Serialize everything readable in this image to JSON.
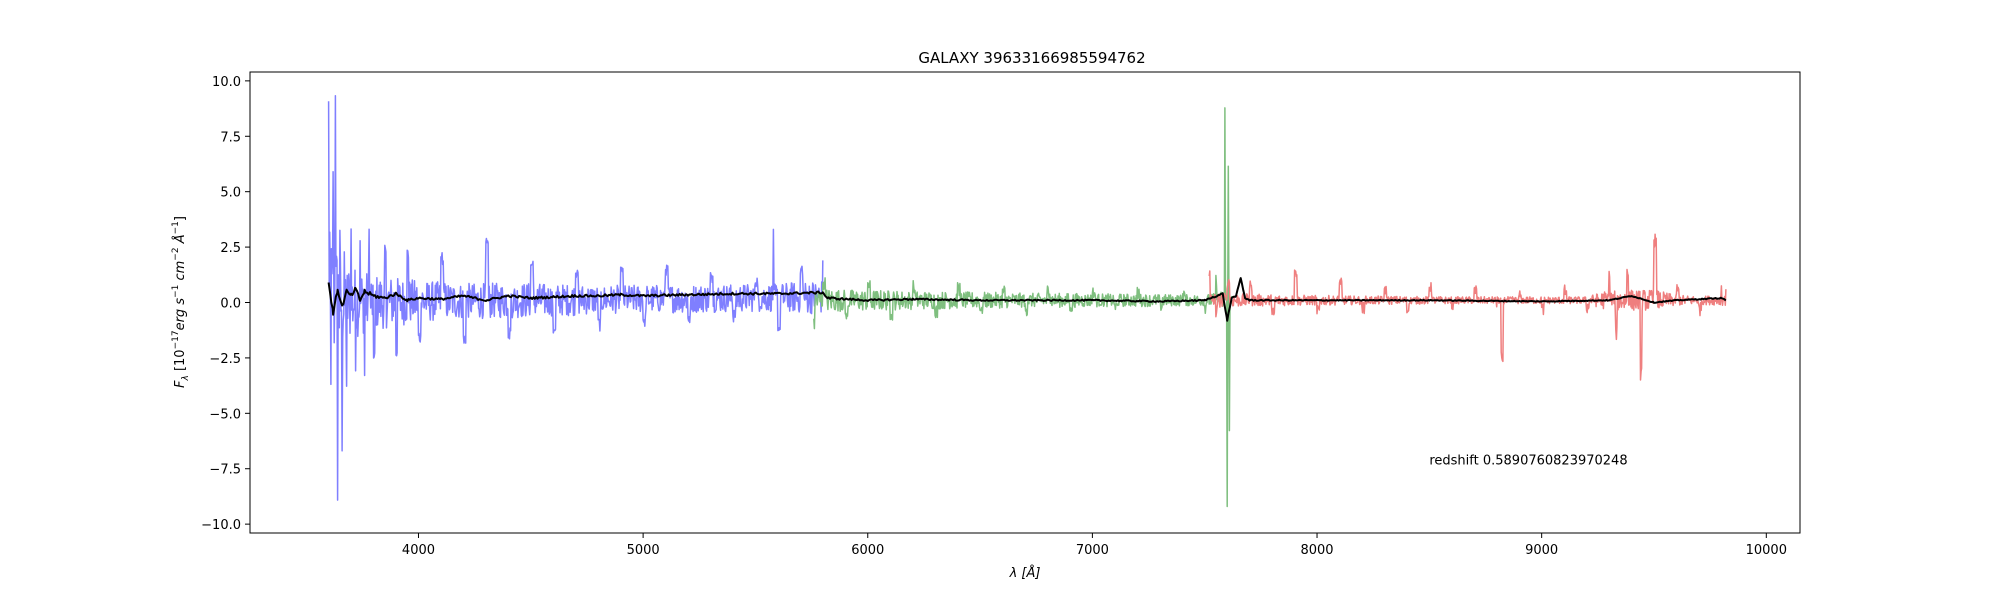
{
  "chart_data": {
    "type": "line",
    "title": "GALAXY 39633166985594762",
    "xlabel": "λ [Å]",
    "ylabel": {
      "base": "F",
      "base_sub": "λ",
      "open": " [10",
      "exp1": "−17",
      "mid1": "erg s",
      "exp2": "−1",
      "mid2": " cm",
      "exp3": "−2",
      "mid3": " Å",
      "exp4": "−1",
      "close": "]"
    },
    "xlim": [
      3250,
      10150
    ],
    "ylim": [
      -10.4,
      10.4
    ],
    "x_ticks": [
      4000,
      5000,
      6000,
      7000,
      8000,
      9000,
      10000
    ],
    "x_tick_labels": [
      "4000",
      "5000",
      "6000",
      "7000",
      "8000",
      "9000",
      "10000"
    ],
    "y_ticks": [
      10.0,
      7.5,
      5.0,
      2.5,
      0.0,
      -2.5,
      -5.0,
      -7.5,
      -10.0
    ],
    "y_tick_labels": [
      "10.0",
      "7.5",
      "5.0",
      "2.5",
      "0.0",
      "−2.5",
      "−5.0",
      "−7.5",
      "−10.0"
    ],
    "grid": false,
    "annotation": {
      "text": "redshift 0.5890760823970248",
      "x": 8500,
      "y": -7.3
    },
    "series": [
      {
        "key": "b",
        "color": "#7f7fff",
        "x": [
          3600,
          3610,
          3620,
          3630,
          3640,
          3650,
          3660,
          3670,
          3680,
          3700,
          3720,
          3740,
          3760,
          3780,
          3800,
          3850,
          3900,
          3950,
          4000,
          4100,
          4200,
          4300,
          4400,
          4500,
          4600,
          4700,
          4800,
          4900,
          5000,
          5100,
          5200,
          5300,
          5400,
          5500,
          5580,
          5600,
          5700,
          5800
        ],
        "y": [
          9.2,
          -3.5,
          6.0,
          9.5,
          -8.9,
          3.0,
          -6.5,
          2.0,
          -4.0,
          3.2,
          -2.8,
          2.6,
          -3.3,
          3.6,
          -2.5,
          2.4,
          -2.3,
          2.2,
          -1.5,
          2.0,
          -1.6,
          2.6,
          -1.4,
          1.7,
          -1.2,
          1.4,
          -1.0,
          1.3,
          -0.8,
          1.4,
          -0.7,
          1.2,
          -0.6,
          1.0,
          3.0,
          -1.0,
          1.5,
          1.9
        ],
        "noise": [
          2.0,
          2.0,
          1.9,
          1.8,
          1.7,
          1.6,
          1.5,
          1.3,
          1.2,
          1.1,
          1.0,
          0.95,
          0.9,
          0.85,
          0.8,
          0.75,
          0.7,
          0.65,
          0.6,
          0.55,
          0.5,
          0.5,
          0.5,
          0.5,
          0.45,
          0.45,
          0.4,
          0.4,
          0.4,
          0.4,
          0.4,
          0.4,
          0.4,
          0.4,
          0.4,
          0.4,
          0.45,
          0.5
        ]
      },
      {
        "key": "r_lo",
        "color": "#7fbf7f",
        "x": [
          5760,
          5800,
          5900,
          6000,
          6100,
          6200,
          6300,
          6400,
          6500,
          6600,
          6700,
          6800,
          6900,
          7000,
          7100,
          7200,
          7300,
          7400,
          7500,
          7550,
          7590,
          7600,
          7605,
          7610,
          7620
        ],
        "y": [
          -1.0,
          0.9,
          -0.6,
          0.8,
          -0.5,
          0.7,
          -0.4,
          0.6,
          -0.3,
          0.5,
          -0.3,
          0.5,
          -0.2,
          0.5,
          -0.2,
          0.4,
          -0.2,
          0.4,
          -0.2,
          1.0,
          8.8,
          -9.4,
          6.0,
          -5.8,
          0.3
        ],
        "noise": [
          0.4,
          0.35,
          0.3,
          0.3,
          0.28,
          0.26,
          0.25,
          0.24,
          0.23,
          0.22,
          0.2,
          0.2,
          0.2,
          0.19,
          0.18,
          0.18,
          0.17,
          0.16,
          0.16,
          0.2,
          0.3,
          0.3,
          0.3,
          0.2,
          0.15
        ]
      },
      {
        "key": "z",
        "color": "#ef7f7f",
        "x": [
          7520,
          7550,
          7600,
          7700,
          7800,
          7900,
          8000,
          8100,
          8200,
          8300,
          8400,
          8500,
          8600,
          8700,
          8800,
          8820,
          8900,
          9000,
          9100,
          9200,
          9300,
          9330,
          9380,
          9440,
          9500,
          9600,
          9700,
          9800,
          9820
        ],
        "y": [
          1.3,
          -0.4,
          0.9,
          0.7,
          -0.5,
          1.4,
          -0.3,
          0.8,
          -0.2,
          0.5,
          -0.3,
          0.6,
          -0.2,
          0.5,
          -0.2,
          -2.5,
          0.4,
          -0.3,
          0.5,
          -0.2,
          1.4,
          -1.4,
          1.5,
          -3.2,
          2.8,
          0.6,
          -0.3,
          0.8,
          0.6
        ],
        "noise": [
          0.2,
          0.2,
          0.2,
          0.18,
          0.16,
          0.15,
          0.14,
          0.13,
          0.12,
          0.12,
          0.11,
          0.11,
          0.1,
          0.1,
          0.1,
          0.1,
          0.1,
          0.1,
          0.1,
          0.1,
          0.3,
          0.3,
          0.3,
          0.3,
          0.3,
          0.15,
          0.12,
          0.14,
          0.15
        ]
      },
      {
        "key": "model",
        "color": "#000000",
        "x": [
          3600,
          3620,
          3640,
          3660,
          3680,
          3700,
          3720,
          3740,
          3760,
          3800,
          3850,
          3900,
          3950,
          4000,
          4100,
          4200,
          4300,
          4400,
          4500,
          4600,
          4700,
          4800,
          4900,
          5000,
          5200,
          5400,
          5600,
          5800,
          5820,
          6000,
          6200,
          6500,
          7000,
          7300,
          7500,
          7580,
          7600,
          7620,
          7640,
          7660,
          7680,
          7700,
          8000,
          8500,
          9000,
          9300,
          9400,
          9500,
          9600,
          9800,
          9820
        ],
        "y": [
          0.9,
          -0.5,
          0.6,
          -0.2,
          0.5,
          0.3,
          0.6,
          0.1,
          0.5,
          0.3,
          0.2,
          0.4,
          0.1,
          0.2,
          0.15,
          0.3,
          0.1,
          0.3,
          0.2,
          0.25,
          0.3,
          0.3,
          0.35,
          0.3,
          0.35,
          0.4,
          0.4,
          0.45,
          0.2,
          0.1,
          0.15,
          0.1,
          0.1,
          0.05,
          0.1,
          0.4,
          -0.8,
          0.2,
          0.3,
          1.1,
          0.2,
          0.1,
          0.1,
          0.1,
          0.05,
          0.1,
          0.3,
          0.0,
          0.1,
          0.2,
          0.1
        ],
        "noise": [
          0.05,
          0.1,
          0.1,
          0.1,
          0.1,
          0.1,
          0.1,
          0.1,
          0.1,
          0.08,
          0.07,
          0.06,
          0.05,
          0.05,
          0.05,
          0.05,
          0.05,
          0.05,
          0.05,
          0.05,
          0.05,
          0.05,
          0.05,
          0.05,
          0.05,
          0.05,
          0.05,
          0.05,
          0.05,
          0.04,
          0.04,
          0.03,
          0.03,
          0.03,
          0.03,
          0.03,
          0.03,
          0.03,
          0.03,
          0.03,
          0.03,
          0.03,
          0.02,
          0.02,
          0.02,
          0.02,
          0.02,
          0.02,
          0.02,
          0.02,
          0.02
        ]
      }
    ]
  }
}
